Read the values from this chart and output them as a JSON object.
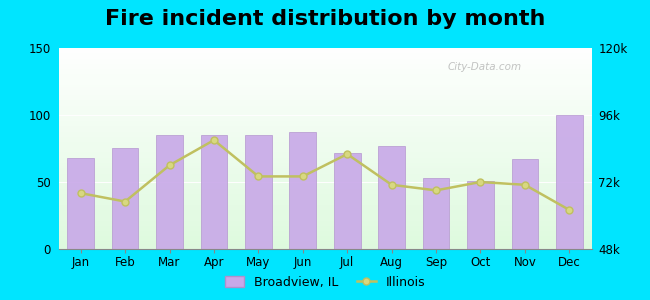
{
  "title": "Fire incident distribution by month",
  "months": [
    "Jan",
    "Feb",
    "Mar",
    "Apr",
    "May",
    "Jun",
    "Jul",
    "Aug",
    "Sep",
    "Oct",
    "Nov",
    "Dec"
  ],
  "broadview_values": [
    68,
    75,
    85,
    85,
    85,
    87,
    72,
    77,
    53,
    51,
    67,
    100
  ],
  "illinois_right_axis": [
    68000,
    65000,
    78000,
    87000,
    74000,
    74000,
    82000,
    71000,
    69000,
    72000,
    71000,
    62000
  ],
  "bar_color": "#c8a8e8",
  "bar_edge_color": "#b090cc",
  "line_color": "#c0c060",
  "line_marker_facecolor": "#d8d880",
  "left_ylim": [
    0,
    150
  ],
  "left_yticks": [
    0,
    50,
    100,
    150
  ],
  "right_ylim": [
    48000,
    120000
  ],
  "right_yticks": [
    48000,
    72000,
    96000,
    120000
  ],
  "right_yticklabels": [
    "48k",
    "72k",
    "96k",
    "120k"
  ],
  "outer_bg": "#00e5ff",
  "title_fontsize": 16,
  "legend_labels": [
    "Broadview, IL",
    "Illinois"
  ],
  "watermark_text": "City-Data.com"
}
